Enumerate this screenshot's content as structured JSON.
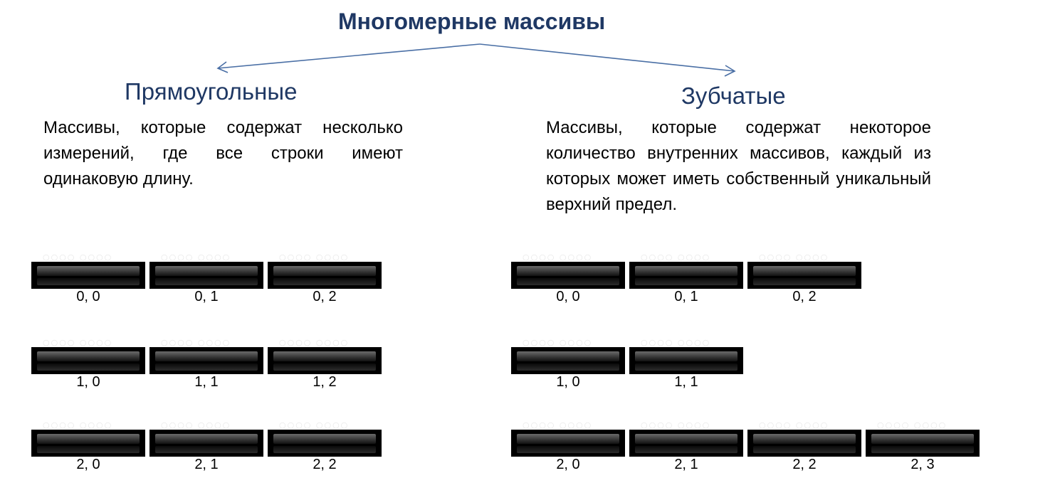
{
  "title": "Многомерные массивы",
  "rectangular": {
    "heading": "Прямоугольные",
    "description": "Массивы, которые содержат несколько измерений, где все строки имеют одинаковую длину.",
    "rows": [
      [
        "0, 0",
        "0, 1",
        "0, 2"
      ],
      [
        "1, 0",
        "1, 1",
        "1, 2"
      ],
      [
        "2, 0",
        "2, 1",
        "2, 2"
      ]
    ]
  },
  "jagged": {
    "heading": "Зубчатые",
    "description": "Массивы, которые содержат некоторое количество внутренних массивов, каждый из которых может иметь собственный уникальный верхний предел.",
    "rows": [
      [
        "0, 0",
        "0, 1",
        "0, 2"
      ],
      [
        "1, 0",
        "1, 1"
      ],
      [
        "2, 0",
        "2, 1",
        "2, 2",
        "2, 3"
      ]
    ]
  },
  "colors": {
    "heading": "#1f3864",
    "arrow": "#4a6fa5",
    "cell": "#000000"
  }
}
